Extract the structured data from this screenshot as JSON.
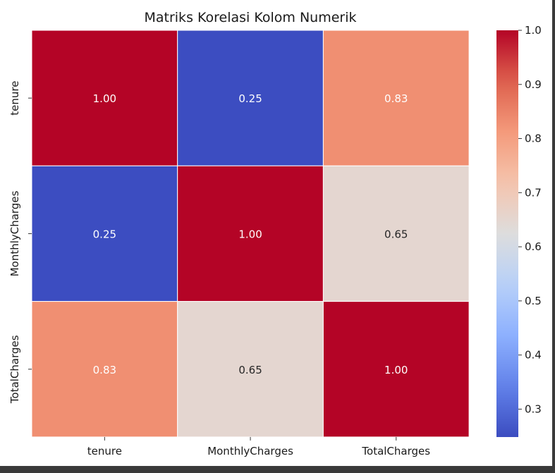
{
  "chart_data": {
    "type": "heatmap",
    "title": "Matriks Korelasi Kolom Numerik",
    "row_labels": [
      "tenure",
      "MonthlyCharges",
      "TotalCharges"
    ],
    "col_labels": [
      "tenure",
      "MonthlyCharges",
      "TotalCharges"
    ],
    "values": [
      [
        1.0,
        0.25,
        0.83
      ],
      [
        0.25,
        1.0,
        0.65
      ],
      [
        0.83,
        0.65,
        1.0
      ]
    ],
    "annotation_format": "2 decimals",
    "colormap": "coolwarm",
    "colorbar": {
      "range": [
        0.2484,
        1.0
      ],
      "ticks": [
        "0.3",
        "0.4",
        "0.5",
        "0.6",
        "0.7",
        "0.8",
        "0.9",
        "1.0"
      ],
      "tick_values": [
        0.3,
        0.4,
        0.5,
        0.6,
        0.7,
        0.8,
        0.9,
        1.0
      ],
      "placement": "right"
    },
    "cell_border_color": "#ffffff",
    "grid": false,
    "colors": {
      "low": "#3b4cc0",
      "mid": "#dddddd",
      "high": "#b40426",
      "text_dark_bg": "#ffffff",
      "text_light_bg": "#262626"
    }
  }
}
